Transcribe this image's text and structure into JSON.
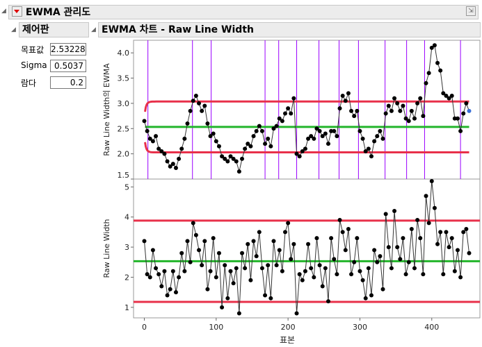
{
  "report": {
    "title": "EWMA 관리도"
  },
  "control_panel": {
    "title": "제어판",
    "fields": [
      {
        "label": "목표값",
        "value": "2.53228"
      },
      {
        "label": "Sigma",
        "value": "0.5037"
      },
      {
        "label": "람다",
        "value": "0.2"
      }
    ]
  },
  "chart_panel": {
    "title": "EWMA 차트 - Raw Line Width"
  },
  "colors": {
    "limit": "#e8304a",
    "center": "#22b52a",
    "alarm": "#9b00ff",
    "points": "#000000",
    "last_point": "#3a6fd8"
  },
  "chart_data": [
    {
      "type": "line",
      "ylabel": "Raw Line Width의 EWMA",
      "ylim": [
        1.5,
        4.25
      ],
      "yticks": [
        "1.5",
        "2.0",
        "2.5",
        "3.0",
        "3.5",
        "4.0"
      ],
      "target": 2.53228,
      "sigma": 0.5037,
      "lambda": 0.2,
      "alarm_samples": [
        5,
        67,
        93,
        168,
        187,
        212,
        243,
        271,
        298,
        335,
        365,
        390,
        440
      ],
      "ewma": [
        [
          0,
          2.65
        ],
        [
          4,
          2.45
        ],
        [
          8,
          2.3
        ],
        [
          12,
          2.25
        ],
        [
          16,
          2.35
        ],
        [
          20,
          2.1
        ],
        [
          24,
          2.05
        ],
        [
          28,
          2.0
        ],
        [
          32,
          1.85
        ],
        [
          36,
          1.75
        ],
        [
          40,
          1.8
        ],
        [
          44,
          1.72
        ],
        [
          48,
          1.9
        ],
        [
          52,
          2.1
        ],
        [
          56,
          2.3
        ],
        [
          60,
          2.6
        ],
        [
          64,
          2.85
        ],
        [
          68,
          3.05
        ],
        [
          72,
          3.15
        ],
        [
          76,
          3.0
        ],
        [
          80,
          2.85
        ],
        [
          84,
          2.95
        ],
        [
          88,
          2.6
        ],
        [
          92,
          2.35
        ],
        [
          96,
          2.4
        ],
        [
          100,
          2.25
        ],
        [
          104,
          2.15
        ],
        [
          108,
          1.95
        ],
        [
          112,
          1.9
        ],
        [
          116,
          1.85
        ],
        [
          120,
          1.95
        ],
        [
          124,
          1.9
        ],
        [
          128,
          1.85
        ],
        [
          132,
          1.65
        ],
        [
          136,
          1.9
        ],
        [
          140,
          2.1
        ],
        [
          144,
          2.2
        ],
        [
          148,
          2.15
        ],
        [
          152,
          2.35
        ],
        [
          156,
          2.45
        ],
        [
          160,
          2.55
        ],
        [
          164,
          2.45
        ],
        [
          168,
          2.2
        ],
        [
          172,
          2.3
        ],
        [
          176,
          2.15
        ],
        [
          180,
          2.5
        ],
        [
          184,
          2.55
        ],
        [
          188,
          2.7
        ],
        [
          192,
          2.65
        ],
        [
          196,
          2.8
        ],
        [
          200,
          2.9
        ],
        [
          204,
          2.8
        ],
        [
          208,
          3.1
        ],
        [
          212,
          2.0
        ],
        [
          216,
          1.95
        ],
        [
          220,
          2.05
        ],
        [
          224,
          2.1
        ],
        [
          228,
          2.3
        ],
        [
          232,
          2.35
        ],
        [
          236,
          2.3
        ],
        [
          240,
          2.5
        ],
        [
          244,
          2.45
        ],
        [
          248,
          2.35
        ],
        [
          252,
          2.4
        ],
        [
          256,
          2.2
        ],
        [
          260,
          2.45
        ],
        [
          264,
          2.45
        ],
        [
          268,
          2.35
        ],
        [
          272,
          2.9
        ],
        [
          276,
          3.15
        ],
        [
          280,
          3.05
        ],
        [
          284,
          3.2
        ],
        [
          288,
          2.85
        ],
        [
          292,
          2.75
        ],
        [
          296,
          2.85
        ],
        [
          300,
          2.45
        ],
        [
          304,
          2.3
        ],
        [
          308,
          2.05
        ],
        [
          312,
          2.1
        ],
        [
          316,
          1.95
        ],
        [
          320,
          2.25
        ],
        [
          324,
          2.35
        ],
        [
          328,
          2.45
        ],
        [
          332,
          2.3
        ],
        [
          336,
          2.8
        ],
        [
          340,
          2.95
        ],
        [
          344,
          2.85
        ],
        [
          348,
          3.1
        ],
        [
          352,
          3.0
        ],
        [
          356,
          2.85
        ],
        [
          360,
          2.95
        ],
        [
          364,
          2.7
        ],
        [
          368,
          2.65
        ],
        [
          372,
          2.85
        ],
        [
          376,
          2.7
        ],
        [
          380,
          3.0
        ],
        [
          384,
          3.1
        ],
        [
          388,
          2.75
        ],
        [
          392,
          3.4
        ],
        [
          396,
          3.6
        ],
        [
          400,
          4.1
        ],
        [
          404,
          4.15
        ],
        [
          408,
          3.8
        ],
        [
          412,
          3.65
        ],
        [
          416,
          3.2
        ],
        [
          420,
          3.15
        ],
        [
          424,
          3.1
        ],
        [
          428,
          3.15
        ],
        [
          432,
          2.7
        ],
        [
          436,
          2.7
        ],
        [
          440,
          2.45
        ],
        [
          444,
          2.8
        ],
        [
          448,
          3.0
        ],
        [
          452,
          2.85
        ]
      ]
    },
    {
      "type": "line",
      "ylabel": "Raw Line Width",
      "xlabel": "표본",
      "ylim": [
        0.65,
        5.1
      ],
      "yticks": [
        "1",
        "2",
        "3",
        "4",
        "5"
      ],
      "xticks": [
        "0",
        "100",
        "200",
        "300",
        "400"
      ],
      "xlim": [
        -15,
        467
      ],
      "center": 2.532,
      "ucl": 3.88,
      "lcl": 1.18,
      "x_step": 4,
      "values": [
        3.2,
        2.1,
        2.0,
        2.9,
        2.3,
        2.1,
        1.7,
        2.2,
        1.4,
        1.6,
        2.2,
        1.5,
        2.0,
        2.8,
        2.2,
        3.2,
        2.5,
        3.8,
        3.4,
        2.9,
        2.4,
        3.2,
        1.6,
        2.2,
        3.3,
        2.0,
        2.8,
        1.0,
        2.4,
        1.3,
        2.2,
        1.8,
        2.3,
        0.8,
        2.8,
        2.3,
        3.1,
        1.9,
        3.2,
        2.7,
        3.5,
        2.3,
        1.4,
        2.4,
        1.3,
        3.2,
        2.4,
        2.9,
        2.2,
        3.5,
        3.8,
        2.6,
        3.1,
        0.8,
        2.1,
        1.9,
        2.2,
        3.1,
        2.3,
        2.0,
        3.3,
        2.4,
        1.7,
        2.3,
        1.2,
        3.3,
        2.6,
        2.1,
        3.9,
        3.5,
        2.9,
        3.6,
        2.1,
        2.5,
        3.3,
        2.2,
        1.9,
        1.3,
        2.3,
        1.4,
        2.9,
        2.5,
        2.7,
        1.6,
        4.1,
        3.0,
        2.3,
        4.2,
        3.0,
        2.6,
        3.3,
        2.1,
        2.5,
        3.6,
        2.3,
        3.9,
        3.3,
        2.1,
        4.7,
        3.8,
        5.4,
        4.3,
        3.1,
        3.5,
        2.1,
        3.5,
        3.0,
        3.3,
        2.2,
        2.9,
        2.0,
        3.5,
        3.6,
        2.8
      ]
    }
  ]
}
